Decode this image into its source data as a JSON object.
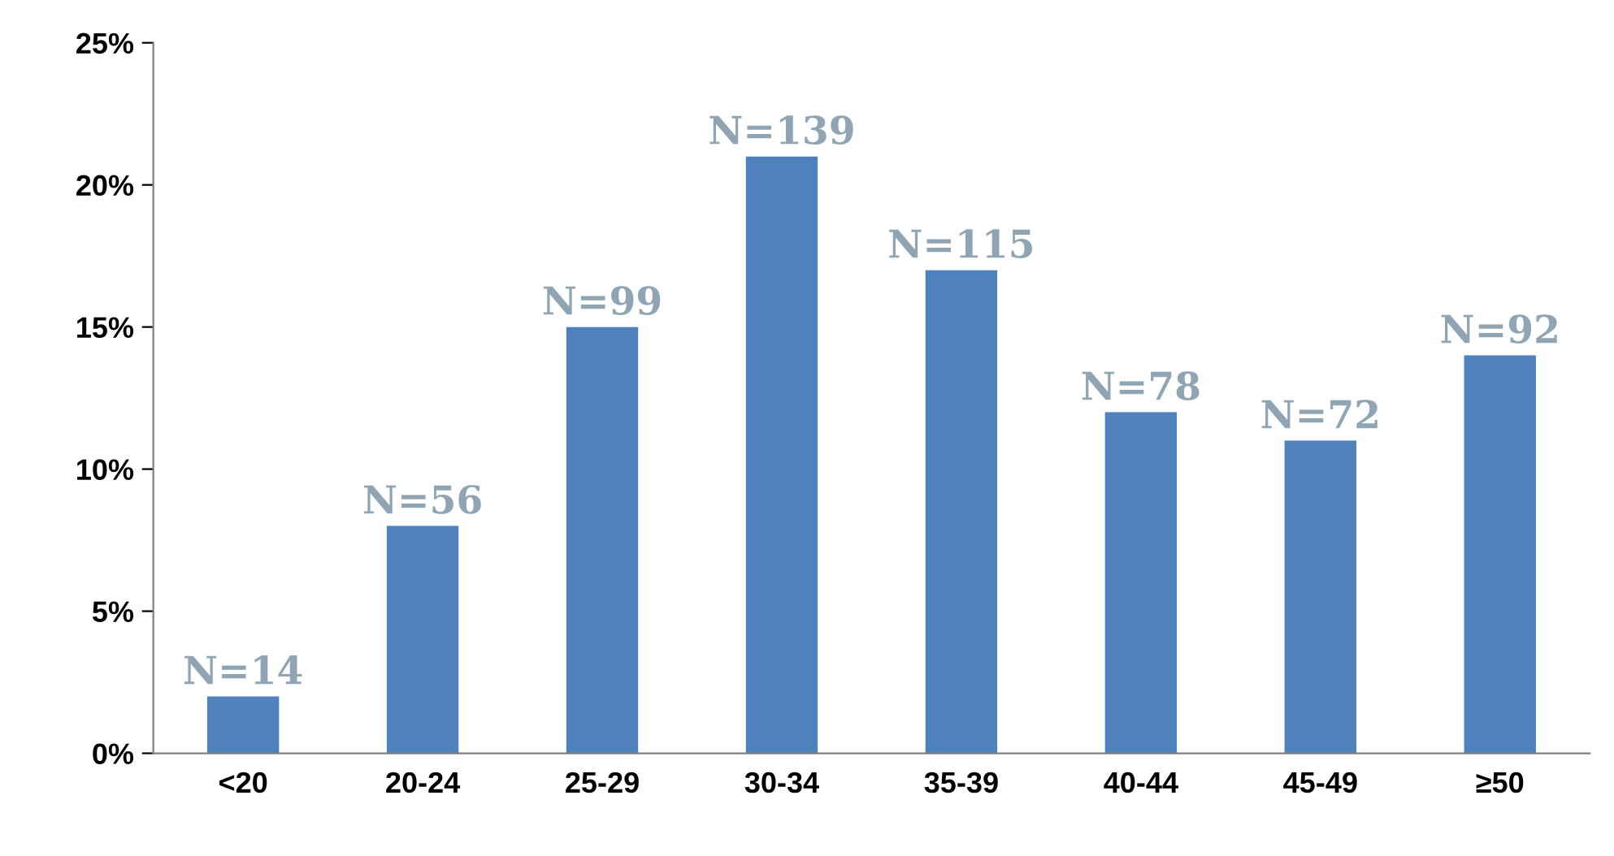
{
  "chart_data": {
    "type": "bar",
    "categories": [
      "<20",
      "20-24",
      "25-29",
      "30-34",
      "35-39",
      "40-44",
      "45-49",
      "≥50"
    ],
    "values": [
      2,
      8,
      15,
      21,
      17,
      12,
      11,
      14
    ],
    "annotations": [
      {
        "text": "N=14",
        "x": "<20",
        "y": 2
      },
      {
        "text": "N=56",
        "x": "20-24",
        "y": 8
      },
      {
        "text": "N=99",
        "x": "25-29",
        "y": 15
      },
      {
        "text": "N=139",
        "x": "30-34",
        "y": 21
      },
      {
        "text": "N=115",
        "x": "35-39",
        "y": 17
      },
      {
        "text": "N=78",
        "x": "40-44",
        "y": 12
      },
      {
        "text": "N=72",
        "x": "45-49",
        "y": 11
      },
      {
        "text": "N=92",
        "x": "≥50",
        "y": 14
      }
    ],
    "color": "#4f81bd",
    "ylim": [
      0,
      25
    ],
    "yticks": [
      {
        "value": 0,
        "label": "0%"
      },
      {
        "value": 5,
        "label": "5%"
      },
      {
        "value": 10,
        "label": "10%"
      },
      {
        "value": 15,
        "label": "15%"
      },
      {
        "value": 20,
        "label": "20%"
      },
      {
        "value": 25,
        "label": "25%"
      }
    ],
    "grid": false,
    "legend": false
  }
}
